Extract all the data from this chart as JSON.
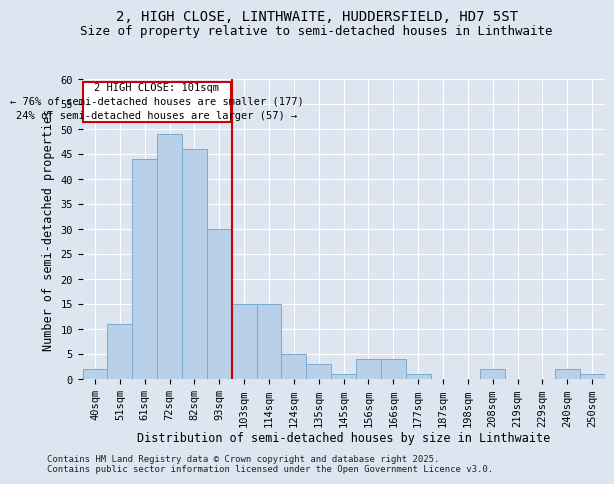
{
  "title1": "2, HIGH CLOSE, LINTHWAITE, HUDDERSFIELD, HD7 5ST",
  "title2": "Size of property relative to semi-detached houses in Linthwaite",
  "xlabel": "Distribution of semi-detached houses by size in Linthwaite",
  "ylabel": "Number of semi-detached properties",
  "categories": [
    "40sqm",
    "51sqm",
    "61sqm",
    "72sqm",
    "82sqm",
    "93sqm",
    "103sqm",
    "114sqm",
    "124sqm",
    "135sqm",
    "145sqm",
    "156sqm",
    "166sqm",
    "177sqm",
    "187sqm",
    "198sqm",
    "208sqm",
    "219sqm",
    "229sqm",
    "240sqm",
    "250sqm"
  ],
  "values": [
    2,
    11,
    44,
    49,
    46,
    30,
    15,
    15,
    5,
    3,
    1,
    4,
    4,
    1,
    0,
    0,
    2,
    0,
    0,
    2,
    1
  ],
  "bar_color": "#b8d0e8",
  "bar_edge_color": "#7aaacf",
  "bg_color": "#dde6f0",
  "grid_color": "#ffffff",
  "annotation_line1": "2 HIGH CLOSE: 101sqm",
  "annotation_line2": "← 76% of semi-detached houses are smaller (177)",
  "annotation_line3": "24% of semi-detached houses are larger (57) →",
  "annotation_box_color": "#ffffff",
  "annotation_box_edge": "#cc0000",
  "vline_color": "#cc0000",
  "vline_index": 5.5,
  "ylim": [
    0,
    60
  ],
  "yticks": [
    0,
    5,
    10,
    15,
    20,
    25,
    30,
    35,
    40,
    45,
    50,
    55,
    60
  ],
  "footnote": "Contains HM Land Registry data © Crown copyright and database right 2025.\nContains public sector information licensed under the Open Government Licence v3.0.",
  "title_fontsize": 10,
  "subtitle_fontsize": 9,
  "axis_label_fontsize": 8.5,
  "tick_fontsize": 7.5,
  "annotation_fontsize": 7.5,
  "footnote_fontsize": 6.5
}
